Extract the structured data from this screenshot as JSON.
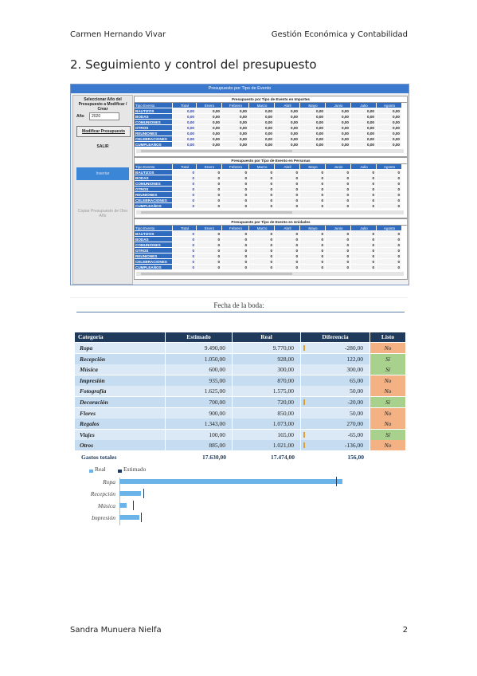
{
  "header": {
    "author": "Carmen Hernando Vivar",
    "course": "Gestión Económica y Contabilidad"
  },
  "heading": "2. Seguimiento y control del presupuesto",
  "window": {
    "title": "Presupuesto por Tipo de Evento",
    "left": {
      "select_label": "Seleccionar Año del Presupuesto a Modificar / Crear",
      "year_label": "Año",
      "year": "2020",
      "modify_button": "Modificar Presupuesto",
      "exit_button": "SALIR",
      "insert_button": "Insertar",
      "copy_button": "Copiar Presupuesto de Otro Año"
    },
    "grids": [
      {
        "title": "Presupuesto por Tipo de Evento en Importes",
        "columns": [
          "Tipo Evento",
          "Total",
          "Enero",
          "Febrero",
          "Marzo",
          "Abril",
          "Mayo",
          "Junio",
          "Julio",
          "Agosto"
        ],
        "rows": [
          {
            "label": "BAUTIZOS",
            "cells": [
              "0,00",
              "0,00",
              "0,00",
              "0,00",
              "0,00",
              "0,00",
              "0,00",
              "0,00",
              "0,00"
            ]
          },
          {
            "label": "BODAS",
            "cells": [
              "0,00",
              "0,00",
              "0,00",
              "0,00",
              "0,00",
              "0,00",
              "0,00",
              "0,00",
              "0,00"
            ]
          },
          {
            "label": "COMUNIONES",
            "cells": [
              "0,00",
              "0,00",
              "0,00",
              "0,00",
              "0,00",
              "0,00",
              "0,00",
              "0,00",
              "0,00"
            ]
          },
          {
            "label": "OTROS",
            "cells": [
              "0,00",
              "0,00",
              "0,00",
              "0,00",
              "0,00",
              "0,00",
              "0,00",
              "0,00",
              "0,00"
            ]
          },
          {
            "label": "REUNIONES",
            "cells": [
              "0,00",
              "0,00",
              "0,00",
              "0,00",
              "0,00",
              "0,00",
              "0,00",
              "0,00",
              "0,00"
            ]
          },
          {
            "label": "CELEBRACIONES",
            "cells": [
              "0,00",
              "0,00",
              "0,00",
              "0,00",
              "0,00",
              "0,00",
              "0,00",
              "0,00",
              "0,00"
            ]
          },
          {
            "label": "CUMPLEAÑOS",
            "cells": [
              "0,00",
              "0,00",
              "0,00",
              "0,00",
              "0,00",
              "0,00",
              "0,00",
              "0,00",
              "0,00"
            ]
          }
        ]
      },
      {
        "title": "Presupuesto por Tipo de Evento en Personas",
        "columns": [
          "Tipo Evento",
          "Total",
          "Enero",
          "Febrero",
          "Marzo",
          "Abril",
          "Mayo",
          "Junio",
          "Julio",
          "Agosto"
        ],
        "rows": [
          {
            "label": "BAUTIZOS",
            "cells": [
              "0",
              "0",
              "0",
              "0",
              "0",
              "0",
              "0",
              "0",
              "0"
            ]
          },
          {
            "label": "BODAS",
            "cells": [
              "0",
              "0",
              "0",
              "0",
              "0",
              "0",
              "0",
              "0",
              "0"
            ]
          },
          {
            "label": "COMUNIONES",
            "cells": [
              "0",
              "0",
              "0",
              "0",
              "0",
              "0",
              "0",
              "0",
              "0"
            ]
          },
          {
            "label": "OTROS",
            "cells": [
              "0",
              "0",
              "0",
              "0",
              "0",
              "0",
              "0",
              "0",
              "0"
            ]
          },
          {
            "label": "REUNIONES",
            "cells": [
              "0",
              "0",
              "0",
              "0",
              "0",
              "0",
              "0",
              "0",
              "0"
            ]
          },
          {
            "label": "CELEBRACIONES",
            "cells": [
              "0",
              "0",
              "0",
              "0",
              "0",
              "0",
              "0",
              "0",
              "0"
            ]
          },
          {
            "label": "CUMPLEAÑOS",
            "cells": [
              "0",
              "0",
              "0",
              "0",
              "0",
              "0",
              "0",
              "0",
              "0"
            ]
          }
        ]
      },
      {
        "title": "Presupuesto por Tipo de Evento en Unidades",
        "columns": [
          "Tipo Evento",
          "Total",
          "Enero",
          "Febrero",
          "Marzo",
          "Abril",
          "Mayo",
          "Junio",
          "Julio",
          "Agosto"
        ],
        "rows": [
          {
            "label": "BAUTIZOS",
            "cells": [
              "0",
              "0",
              "0",
              "0",
              "0",
              "0",
              "0",
              "0",
              "0"
            ]
          },
          {
            "label": "BODAS",
            "cells": [
              "0",
              "0",
              "0",
              "0",
              "0",
              "0",
              "0",
              "0",
              "0"
            ]
          },
          {
            "label": "COMUNIONES",
            "cells": [
              "0",
              "0",
              "0",
              "0",
              "0",
              "0",
              "0",
              "0",
              "0"
            ]
          },
          {
            "label": "OTROS",
            "cells": [
              "0",
              "0",
              "0",
              "0",
              "0",
              "0",
              "0",
              "0",
              "0"
            ]
          },
          {
            "label": "REUNIONES",
            "cells": [
              "0",
              "0",
              "0",
              "0",
              "0",
              "0",
              "0",
              "0",
              "0"
            ]
          },
          {
            "label": "CELEBRACIONES",
            "cells": [
              "0",
              "0",
              "0",
              "0",
              "0",
              "0",
              "0",
              "0",
              "0"
            ]
          },
          {
            "label": "CUMPLEAÑOS",
            "cells": [
              "0",
              "0",
              "0",
              "0",
              "0",
              "0",
              "0",
              "0",
              "0"
            ]
          }
        ]
      }
    ]
  },
  "wedding": {
    "title": "Fecha de la boda:",
    "columns": [
      "Categoría",
      "Estimado",
      "Real",
      "Diferencia",
      "Listo"
    ],
    "rows": [
      {
        "category": "Ropa",
        "estimated": "9.490,00",
        "real": "9.770,00",
        "difference": "-280,00",
        "ready": "No",
        "ready_color": "#f4b183"
      },
      {
        "category": "Recepción",
        "estimated": "1.050,00",
        "real": "928,00",
        "difference": "122,00",
        "ready": "Sí",
        "ready_color": "#a9d18e"
      },
      {
        "category": "Música",
        "estimated": "600,00",
        "real": "300,00",
        "difference": "300,00",
        "ready": "Sí",
        "ready_color": "#a9d18e"
      },
      {
        "category": "Impresión",
        "estimated": "935,00",
        "real": "870,00",
        "difference": "65,00",
        "ready": "No",
        "ready_color": "#f4b183"
      },
      {
        "category": "Fotografía",
        "estimated": "1.625,00",
        "real": "1.575,00",
        "difference": "50,00",
        "ready": "No",
        "ready_color": "#f4b183"
      },
      {
        "category": "Decoración",
        "estimated": "700,00",
        "real": "720,00",
        "difference": "-20,00",
        "ready": "Sí",
        "ready_color": "#a9d18e"
      },
      {
        "category": "Flores",
        "estimated": "900,00",
        "real": "850,00",
        "difference": "50,00",
        "ready": "No",
        "ready_color": "#f4b183"
      },
      {
        "category": "Regalos",
        "estimated": "1.343,00",
        "real": "1.073,00",
        "difference": "270,00",
        "ready": "No",
        "ready_color": "#f4b183"
      },
      {
        "category": "Viajes",
        "estimated": "100,00",
        "real": "165,00",
        "difference": "-65,00",
        "ready": "Sí",
        "ready_color": "#a9d18e"
      },
      {
        "category": "Otros",
        "estimated": "885,00",
        "real": "1.021,00",
        "difference": "-136,00",
        "ready": "No",
        "ready_color": "#f4b183"
      }
    ],
    "total": {
      "label": "Gastos totales",
      "estimated": "17.630,00",
      "real": "17.474,00",
      "difference": "156,00"
    }
  },
  "chart": {
    "legend": [
      {
        "name": "Real",
        "color": "#6ab4ea"
      },
      {
        "name": "Estimado",
        "color": "#1f3a5a"
      }
    ],
    "categories": [
      "Ropa",
      "Recepción",
      "Música",
      "Impresión"
    ],
    "real": [
      9770,
      928,
      300,
      870
    ],
    "estimated": [
      9490,
      1050,
      600,
      935
    ]
  },
  "footer": {
    "author": "Sandra Munuera Nielfa",
    "page": "2"
  }
}
